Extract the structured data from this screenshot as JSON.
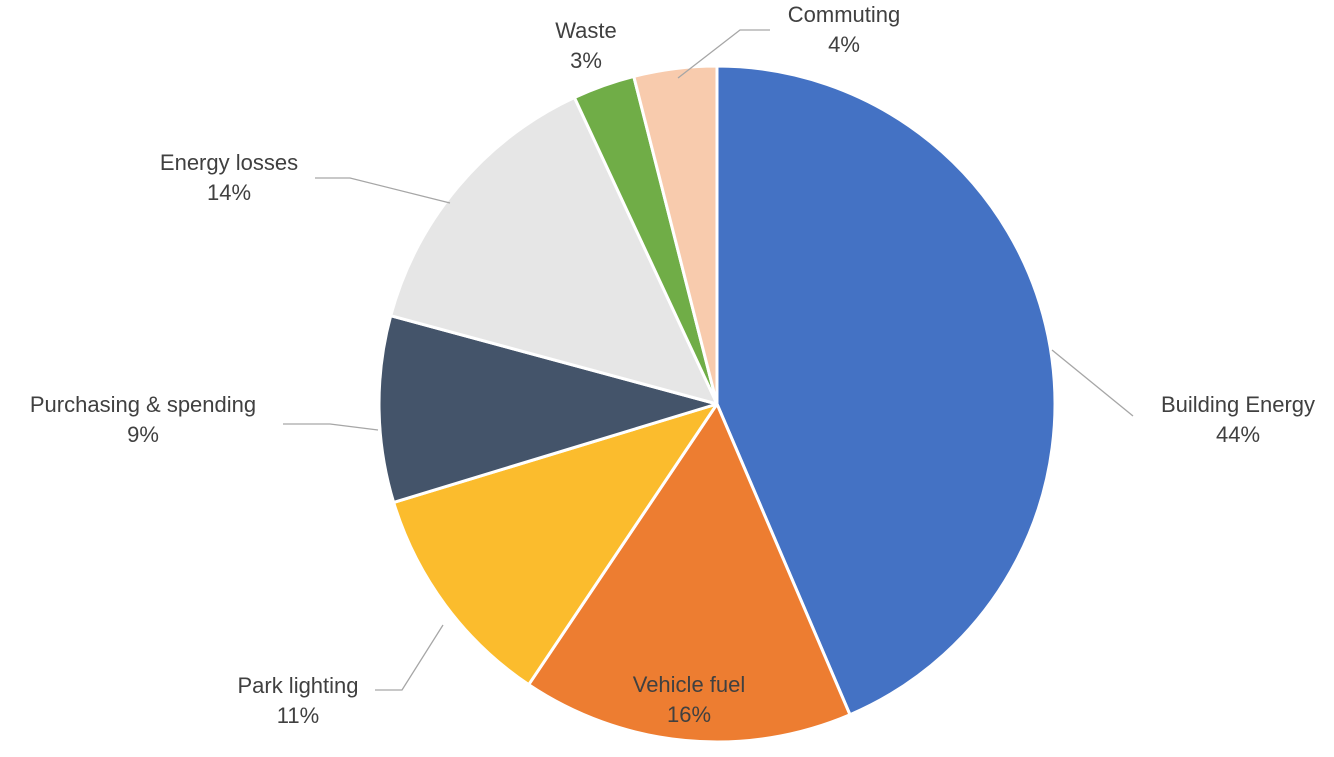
{
  "chart_data": {
    "type": "pie",
    "title": "",
    "start_angle_deg": 0,
    "direction": "clockwise",
    "slices": [
      {
        "label": "Building Energy",
        "value": 44,
        "value_label": "44%",
        "color": "#4472c4"
      },
      {
        "label": "Vehicle fuel",
        "value": 16,
        "value_label": "16%",
        "color": "#ed7d31"
      },
      {
        "label": "Park lighting",
        "value": 11,
        "value_label": "11%",
        "color": "#fbbc2d"
      },
      {
        "label": "Purchasing & spending",
        "value": 9,
        "value_label": "9%",
        "color": "#44546a"
      },
      {
        "label": "Energy losses",
        "value": 14,
        "value_label": "14%",
        "color": "#e6e6e6"
      },
      {
        "label": "Waste",
        "value": 3,
        "value_label": "3%",
        "color": "#70ad47"
      },
      {
        "label": "Commuting",
        "value": 4,
        "value_label": "4%",
        "color": "#f8cbad"
      }
    ],
    "legend": "none",
    "label_position": "outside with leader lines"
  }
}
